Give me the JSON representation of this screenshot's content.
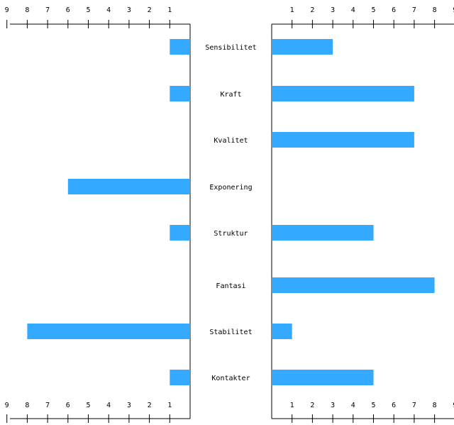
{
  "chart_data": {
    "type": "bar",
    "categories": [
      "Sensibilitet",
      "Kraft",
      "Kvalitet",
      "Exponering",
      "Struktur",
      "Fantasi",
      "Stabilitet",
      "Kontakter"
    ],
    "series": [
      {
        "side": "left",
        "values": [
          1,
          1,
          0,
          6,
          1,
          0,
          8,
          1
        ]
      },
      {
        "side": "right",
        "values": [
          3,
          7,
          7,
          0,
          5,
          8,
          1,
          5
        ]
      }
    ],
    "left_ticks": [
      "9",
      "8",
      "7",
      "6",
      "5",
      "4",
      "3",
      "2",
      "1"
    ],
    "right_ticks": [
      "1",
      "2",
      "3",
      "4",
      "5",
      "6",
      "7",
      "8",
      "9"
    ],
    "xlim": [
      0,
      9
    ],
    "bar_color": "#33aaff",
    "grid": false
  }
}
